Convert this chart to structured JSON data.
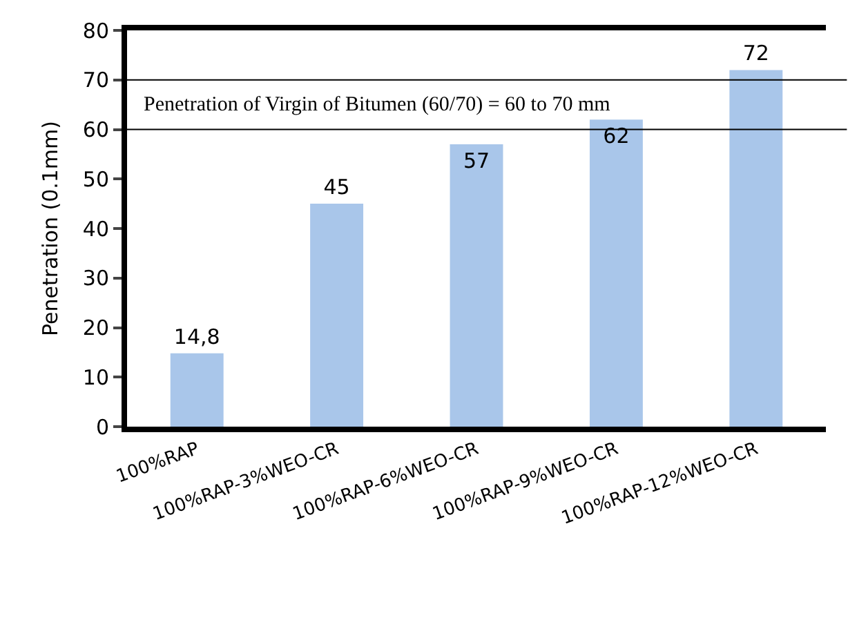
{
  "chart_data": {
    "type": "bar",
    "ylabel": "Penetration (0.1mm)",
    "categories": [
      "100%RAP",
      "100%RAP-3%WEO-CR",
      "100%RAP-6%WEO-CR",
      "100%RAP-9%WEO-CR",
      "100%RAP-12%WEO-CR"
    ],
    "values": [
      14.8,
      45,
      57,
      62,
      72
    ],
    "value_labels": [
      "14,8",
      "45",
      "57",
      "62",
      "72"
    ],
    "color": "#a9c6ea",
    "ylim": [
      0,
      80
    ],
    "yticks": [
      0,
      10,
      20,
      30,
      40,
      50,
      60,
      70,
      80
    ],
    "ref_lines": [
      {
        "axis": "y",
        "value": 60,
        "label": null,
        "color": "#000000"
      },
      {
        "axis": "y",
        "value": 70,
        "label": null,
        "color": "#000000"
      }
    ],
    "annotations": [
      "Penetration of Virgin of Bitumen (60/70) = 60 to 70 mm"
    ]
  }
}
